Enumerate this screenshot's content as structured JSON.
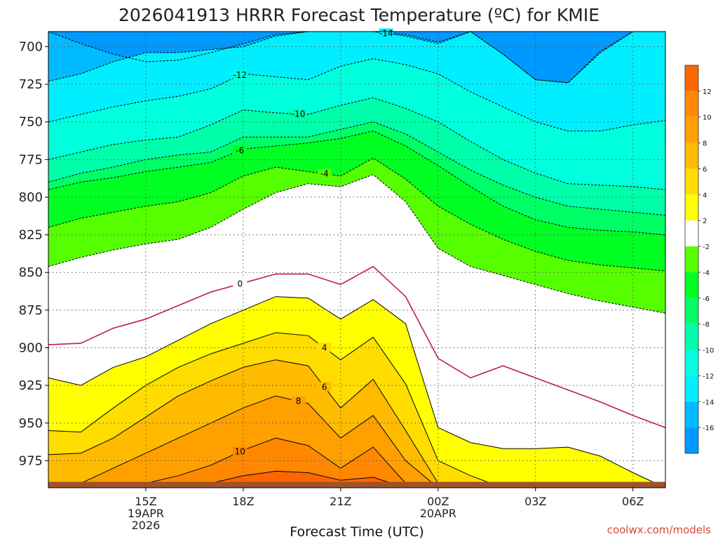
{
  "chart_data": {
    "type": "heatmap",
    "title": "2026041913 HRRR Forecast Temperature (ºC) for KMIE",
    "xlabel": "Forecast Time (UTC)",
    "ylabel": "",
    "y_axis": {
      "ticks": [
        700,
        725,
        750,
        775,
        800,
        825,
        850,
        875,
        900,
        925,
        950,
        975
      ],
      "ylim": [
        993,
        690
      ],
      "inverted": true,
      "unit": "hPa"
    },
    "x_axis": {
      "xlim_hours_from_12Z": [
        0.0,
        19.0
      ],
      "ticks": [
        {
          "hour": 3,
          "lines": [
            "15Z",
            "19APR",
            "2026"
          ]
        },
        {
          "hour": 6,
          "lines": [
            "18Z"
          ]
        },
        {
          "hour": 9,
          "lines": [
            "21Z"
          ]
        },
        {
          "hour": 12,
          "lines": [
            "00Z",
            "20APR"
          ]
        },
        {
          "hour": 15,
          "lines": [
            "03Z"
          ]
        },
        {
          "hour": 18,
          "lines": [
            "06Z"
          ]
        }
      ]
    },
    "grid": true,
    "colorbar": {
      "position": "right",
      "tick_labels": [
        "12",
        "10",
        "8",
        "6",
        "4",
        "2",
        "-2",
        "-4",
        "-6",
        "-8",
        "-10",
        "-12",
        "-14",
        "-16"
      ],
      "bands": [
        {
          "from": 12,
          "to": 14,
          "color": "#ff6600"
        },
        {
          "from": 10,
          "to": 12,
          "color": "#ff8800"
        },
        {
          "from": 8,
          "to": 10,
          "color": "#ffa000"
        },
        {
          "from": 6,
          "to": 8,
          "color": "#ffbb00"
        },
        {
          "from": 4,
          "to": 6,
          "color": "#ffdd00"
        },
        {
          "from": 2,
          "to": 4,
          "color": "#ffff00"
        },
        {
          "from": -2,
          "to": 2,
          "color": "#ffffff"
        },
        {
          "from": -4,
          "to": -2,
          "color": "#55ff00"
        },
        {
          "from": -6,
          "to": -4,
          "color": "#00ff22"
        },
        {
          "from": -8,
          "to": -6,
          "color": "#00ff66"
        },
        {
          "from": -10,
          "to": -8,
          "color": "#00ffaa"
        },
        {
          "from": -12,
          "to": -10,
          "color": "#00ffdd"
        },
        {
          "from": -14,
          "to": -12,
          "color": "#00eeff"
        },
        {
          "from": -16,
          "to": -14,
          "color": "#00bbff"
        },
        {
          "from": -18,
          "to": -16,
          "color": "#0099ff"
        }
      ]
    },
    "contour_labels": [
      "-14",
      "-12",
      "-10",
      "-6",
      "-4",
      "0",
      "4",
      "6",
      "8",
      "10"
    ],
    "surface_color": "#a0522d",
    "times_hours": [
      0,
      1,
      2,
      3,
      4,
      5,
      6,
      7,
      8,
      9,
      10,
      11,
      12,
      13,
      14,
      15,
      16,
      17,
      18,
      19
    ],
    "isotherms_hPa": {
      "-16": [
        690,
        698,
        705,
        710,
        709,
        704,
        698,
        692,
        690,
        690,
        690,
        692,
        697,
        690,
        705,
        722,
        724,
        703,
        690,
        690
      ],
      "-14": [
        723,
        718,
        710,
        704,
        704,
        702,
        700,
        693,
        690,
        690,
        690,
        693,
        698,
        690,
        705,
        722,
        724,
        704,
        690,
        690
      ],
      "-12": [
        750,
        745,
        740,
        736,
        733,
        728,
        718,
        720,
        722,
        713,
        708,
        712,
        718,
        730,
        740,
        750,
        756,
        756,
        752,
        749
      ],
      "-10": [
        775,
        770,
        765,
        762,
        760,
        752,
        742,
        744,
        745,
        739,
        734,
        741,
        750,
        763,
        775,
        784,
        791,
        792,
        793,
        795
      ],
      "-8": [
        790,
        784,
        780,
        775,
        772,
        770,
        760,
        760,
        760,
        755,
        750,
        758,
        770,
        782,
        792,
        800,
        806,
        808,
        810,
        812
      ],
      "-6": [
        795,
        790,
        787,
        783,
        780,
        777,
        768,
        766,
        764,
        761,
        756,
        766,
        779,
        793,
        806,
        815,
        820,
        822,
        823,
        825
      ],
      "-4": [
        820,
        814,
        810,
        806,
        803,
        797,
        786,
        780,
        783,
        786,
        774,
        788,
        806,
        818,
        828,
        836,
        842,
        845,
        847,
        849
      ],
      "-2": [
        846,
        840,
        835,
        831,
        828,
        820,
        808,
        797,
        791,
        793,
        785,
        803,
        834,
        846,
        852,
        858,
        864,
        869,
        873,
        877
      ],
      "0": [
        898,
        897,
        887,
        881,
        872,
        863,
        857,
        851,
        851,
        858,
        846,
        866,
        907,
        920,
        912,
        920,
        928,
        936,
        945,
        953
      ],
      "2": [
        920,
        925,
        913,
        906,
        895,
        884,
        875,
        866,
        867,
        881,
        868,
        884,
        953,
        963,
        967,
        967,
        966,
        972,
        983,
        993
      ],
      "4": [
        955,
        956,
        940,
        925,
        913,
        904,
        897,
        890,
        892,
        908,
        893,
        924,
        975,
        985,
        993,
        993,
        993,
        993,
        993,
        993
      ],
      "6": [
        971,
        970,
        960,
        946,
        932,
        922,
        913,
        908,
        912,
        940,
        921,
        955,
        990,
        993,
        993,
        993,
        993,
        993,
        993,
        993
      ],
      "8": [
        993,
        990,
        980,
        970,
        960,
        950,
        940,
        932,
        937,
        960,
        945,
        975,
        993,
        993,
        993,
        993,
        993,
        993,
        993,
        993
      ],
      "10": [
        993,
        993,
        993,
        990,
        985,
        978,
        968,
        960,
        965,
        980,
        966,
        990,
        993,
        993,
        993,
        993,
        993,
        993,
        993,
        993
      ],
      "12": [
        993,
        993,
        993,
        993,
        993,
        990,
        985,
        982,
        983,
        988,
        986,
        993,
        993,
        993,
        993,
        993,
        993,
        993,
        993,
        993
      ]
    }
  },
  "credit": "coolwx.com/models"
}
